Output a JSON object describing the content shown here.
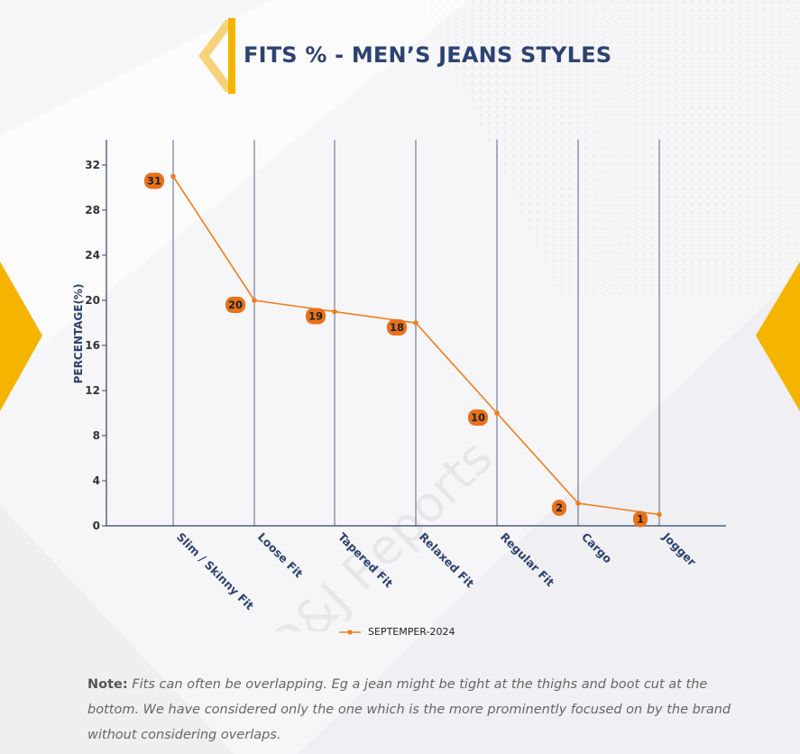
{
  "title": "FITS % - MEN’S JEANS STYLES",
  "watermark": "D&J Reports",
  "colors": {
    "accent": "#f5b400",
    "line": "#f07d1a",
    "label_bg": "#e8711a",
    "axis": "#2e4270",
    "title": "#2e4270"
  },
  "legend": {
    "label": "SEPTEMPER-2024"
  },
  "note": {
    "prefix": "Note:",
    "text": " Fits can often be overlapping. Eg a jean might be tight at the thighs and boot cut at the bottom. We have considered only the one which is the more prominently focused on by the brand without considering overlaps."
  },
  "chart_data": {
    "type": "line",
    "title": "FITS % - MEN’S JEANS STYLES",
    "xlabel": "",
    "ylabel": "PERCENTAGE(%)",
    "ylim": [
      0,
      34
    ],
    "yticks": [
      0,
      4,
      8,
      12,
      16,
      20,
      24,
      28,
      32
    ],
    "grid": "vertical",
    "legend_position": "bottom-center",
    "categories": [
      "Slim / Skinny Fit",
      "Loose Fit",
      "Tapered Fit",
      "Relaxed Fit",
      "Regular Fit",
      "Cargo",
      "Jogger"
    ],
    "series": [
      {
        "name": "SEPTEMPER-2024",
        "values": [
          31,
          20,
          19,
          18,
          10,
          2,
          1
        ]
      }
    ]
  }
}
